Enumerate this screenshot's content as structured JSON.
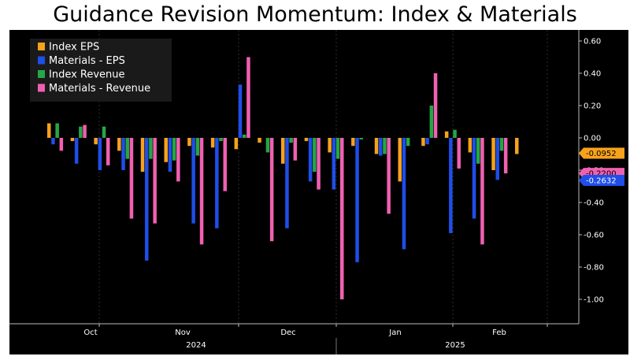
{
  "title": "Guidance Revision Momentum: Index & Materials",
  "colors": {
    "background": "#000000",
    "Index EPS": "#f7a21b",
    "Materials - EPS": "#1f4ee8",
    "Index Revenue": "#26a646",
    "Materials - Revenue": "#f060b0"
  },
  "chart_data": {
    "type": "bar",
    "ylim": [
      -1.1,
      0.65
    ],
    "y_ticks": [
      "0.60",
      "0.40",
      "0.20",
      "0.00",
      "-0.20",
      "-0.40",
      "-0.60",
      "-0.80",
      "-1.00"
    ],
    "y_tick_values": [
      0.6,
      0.4,
      0.2,
      0.0,
      -0.2,
      -0.4,
      -0.6,
      -0.8,
      -1.0
    ],
    "x_month_labels": [
      "Oct",
      "Nov",
      "Dec",
      "Jan",
      "Feb"
    ],
    "x_year_labels": [
      "2024",
      "2025"
    ],
    "legend": [
      "Index EPS",
      "Materials - EPS",
      "Index Revenue",
      "Materials - Revenue"
    ],
    "legend_position": "top-left",
    "series": [
      {
        "name": "Index EPS",
        "values": [
          0.09,
          -0.02,
          -0.04,
          -0.08,
          -0.21,
          -0.15,
          -0.05,
          -0.06,
          -0.07,
          -0.03,
          -0.16,
          -0.02,
          -0.09,
          -0.05,
          -0.1,
          -0.27,
          -0.05,
          0.04,
          -0.09,
          -0.2,
          -0.1
        ]
      },
      {
        "name": "Materials - EPS",
        "values": [
          -0.04,
          -0.16,
          -0.2,
          -0.2,
          -0.76,
          -0.21,
          -0.53,
          -0.56,
          0.33,
          0.0,
          -0.56,
          -0.27,
          -0.32,
          -0.77,
          -0.11,
          -0.69,
          -0.04,
          -0.59,
          -0.5,
          -0.26,
          0.0
        ]
      },
      {
        "name": "Index Revenue",
        "values": [
          0.09,
          0.07,
          0.07,
          -0.13,
          -0.13,
          -0.14,
          -0.11,
          -0.02,
          0.02,
          -0.09,
          -0.03,
          -0.21,
          -0.13,
          -0.01,
          -0.1,
          -0.05,
          0.2,
          0.05,
          -0.16,
          -0.08,
          0.0
        ]
      },
      {
        "name": "Materials - Revenue",
        "values": [
          -0.08,
          0.08,
          -0.17,
          -0.5,
          -0.53,
          -0.27,
          -0.66,
          -0.33,
          0.5,
          -0.64,
          -0.14,
          -0.32,
          -1.0,
          0.0,
          -0.47,
          0.0,
          0.4,
          -0.19,
          -0.66,
          -0.22,
          0.0
        ]
      }
    ],
    "last_value_tags": [
      {
        "series": "Index EPS",
        "label": "-0.0952",
        "value": -0.0952
      },
      {
        "series": "Materials - Revenue",
        "label": "-0.2200",
        "value": -0.22
      },
      {
        "series": "Materials - EPS",
        "label": "-0.2632",
        "value": -0.2632
      }
    ]
  }
}
